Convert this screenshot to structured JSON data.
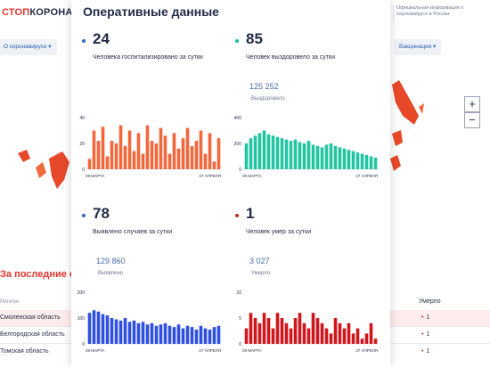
{
  "header": {
    "logo_prefix": "СТОП",
    "logo_main": "КОРОНАВИ",
    "official_info": "Официальная информация о коронавирусе в России"
  },
  "nav": {
    "left_pill": "О коронавирусе ▾",
    "right_pill": "Вакцинация ▾"
  },
  "map": {
    "zoom_in": "+",
    "zoom_out": "−"
  },
  "table": {
    "section_title": "За последние сутки",
    "column_region": "Регион",
    "column_deaths": "Умерло",
    "rows": [
      {
        "region": "Смоленская область",
        "deaths": "1"
      },
      {
        "region": "Белгородская область",
        "deaths": "1"
      },
      {
        "region": "Томская область",
        "deaths": "1"
      }
    ]
  },
  "modal": {
    "title": "Оперативные данные",
    "stats": [
      {
        "value": "24",
        "label": "Человека госпитализировано за сутки",
        "color": "#2a66c9"
      },
      {
        "value": "85",
        "label": "Человек выздоровело за сутки",
        "total": "125 252",
        "total_label": "Выздоровело",
        "color": "#19b9a3"
      },
      {
        "value": "78",
        "label": "Выявлено случаев за сутки",
        "total": "129 860",
        "total_label": "Выявлено",
        "color": "#2a66c9"
      },
      {
        "value": "1",
        "label": "Человек умер за сутки",
        "total": "3 027",
        "total_label": "Умерло",
        "color": "#c62828"
      }
    ]
  },
  "chart_data": [
    {
      "type": "bar",
      "color": "#f2683c",
      "y_ticks": [
        "40",
        "20",
        "0"
      ],
      "ylim": [
        0,
        40
      ],
      "x_start_label": "29 МАРТА",
      "x_end_label": "27 АПРЕЛЯ",
      "values": [
        8,
        30,
        22,
        33,
        10,
        22,
        20,
        34,
        18,
        30,
        14,
        28,
        12,
        34,
        22,
        20,
        32,
        26,
        12,
        28,
        16,
        24,
        32,
        18,
        22,
        30,
        12,
        28,
        6,
        24
      ]
    },
    {
      "type": "bar",
      "color": "#22c4a2",
      "y_ticks": [
        "400",
        "200",
        "0"
      ],
      "ylim": [
        0,
        400
      ],
      "x_start_label": "29 МАРТА",
      "x_end_label": "27 АПРЕЛЯ",
      "values": [
        200,
        240,
        260,
        280,
        300,
        270,
        260,
        250,
        240,
        230,
        220,
        230,
        210,
        200,
        220,
        190,
        180,
        170,
        190,
        200,
        180,
        170,
        160,
        150,
        140,
        130,
        120,
        110,
        100,
        90
      ]
    },
    {
      "type": "bar",
      "color": "#2f4fe0",
      "y_ticks": [
        "200",
        "100",
        "0"
      ],
      "ylim": [
        0,
        200
      ],
      "x_start_label": "29 МАРТА",
      "x_end_label": "27 АПРЕЛЯ",
      "values": [
        120,
        130,
        125,
        115,
        110,
        100,
        95,
        90,
        100,
        85,
        90,
        80,
        85,
        75,
        80,
        70,
        75,
        80,
        70,
        65,
        75,
        60,
        70,
        65,
        55,
        70,
        60,
        55,
        65,
        70
      ]
    },
    {
      "type": "bar",
      "color": "#d0161c",
      "y_ticks": [
        "10",
        "5",
        "0"
      ],
      "ylim": [
        0,
        10
      ],
      "x_start_label": "29 МАРТА",
      "x_end_label": "27 АПРЕЛЯ",
      "values": [
        3,
        6,
        5,
        4,
        6,
        5,
        3,
        6,
        5,
        4,
        3,
        5,
        6,
        4,
        3,
        6,
        5,
        4,
        3,
        2,
        5,
        4,
        3,
        4,
        2,
        3,
        1,
        2,
        4,
        1
      ]
    }
  ]
}
